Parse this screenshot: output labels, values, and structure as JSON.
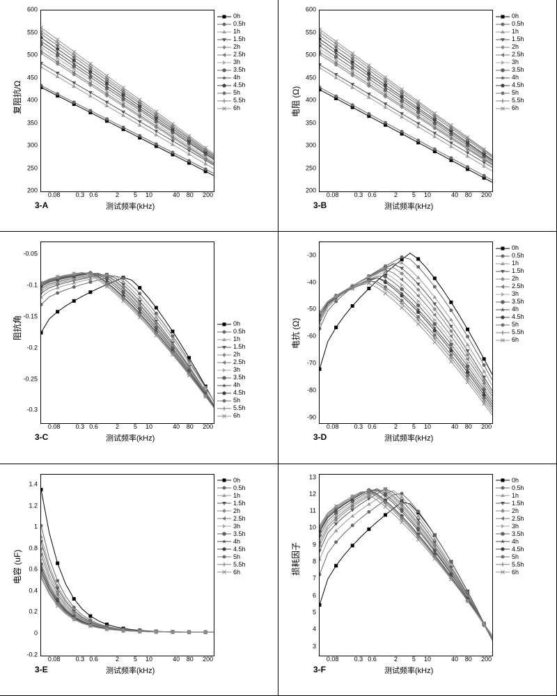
{
  "figure_size": [
    800,
    1000
  ],
  "background_color": "#ffffff",
  "tick_font_size": 9,
  "label_font_size": 12,
  "xlabel_font_size": 11,
  "x_axis_label": "测试频率(kHz)",
  "x_ticks": [
    0.08,
    0.3,
    0.6,
    2,
    5,
    10,
    40,
    80,
    200
  ],
  "x_scale": "log",
  "xlim": [
    0.04,
    260
  ],
  "legend_labels": [
    "0h",
    "0.5h",
    "1h",
    "1.5h",
    "2h",
    "2.5h",
    "3h",
    "3.5h",
    "4h",
    "4.5h",
    "5h",
    "5.5h",
    "6h"
  ],
  "legend_font_size": 9,
  "series_colors": [
    "#000000",
    "#666666",
    "#999999",
    "#555555",
    "#888888",
    "#777777",
    "#aaaaaa",
    "#606060",
    "#505050",
    "#404040",
    "#707070",
    "#808080",
    "#909090"
  ],
  "series_markers": [
    "square",
    "circle",
    "triangle-up",
    "triangle-down",
    "diamond",
    "triangle-left",
    "triangle-right",
    "hexagon",
    "star",
    "pentagon",
    "circle",
    "plus",
    "cross"
  ],
  "line_width": 1,
  "marker_size": 5,
  "panels": [
    {
      "tag": "3-A",
      "ylabel": "复阻抗/Ω",
      "ylim": [
        200,
        600
      ],
      "ytick_step": 50,
      "type": "line",
      "monotonic": "decreasing",
      "legend_pos": "upper-right",
      "series": [
        {
          "y_start": 430,
          "y_end": 235
        },
        {
          "y_start": 434,
          "y_end": 240
        },
        {
          "y_start": 475,
          "y_end": 250
        },
        {
          "y_start": 483,
          "y_end": 258
        },
        {
          "y_start": 505,
          "y_end": 260
        },
        {
          "y_start": 510,
          "y_end": 262
        },
        {
          "y_start": 518,
          "y_end": 265
        },
        {
          "y_start": 525,
          "y_end": 270
        },
        {
          "y_start": 532,
          "y_end": 272
        },
        {
          "y_start": 540,
          "y_end": 275
        },
        {
          "y_start": 548,
          "y_end": 278
        },
        {
          "y_start": 555,
          "y_end": 280
        },
        {
          "y_start": 562,
          "y_end": 283
        }
      ]
    },
    {
      "tag": "3-B",
      "ylabel": "电阻 (Ω)",
      "ylim": [
        200,
        600
      ],
      "ytick_step": 50,
      "type": "line",
      "monotonic": "decreasing",
      "legend_pos": "upper-right",
      "series": [
        {
          "y_start": 425,
          "y_end": 220
        },
        {
          "y_start": 430,
          "y_end": 225
        },
        {
          "y_start": 473,
          "y_end": 245
        },
        {
          "y_start": 480,
          "y_end": 253
        },
        {
          "y_start": 503,
          "y_end": 258
        },
        {
          "y_start": 508,
          "y_end": 260
        },
        {
          "y_start": 515,
          "y_end": 262
        },
        {
          "y_start": 522,
          "y_end": 265
        },
        {
          "y_start": 530,
          "y_end": 268
        },
        {
          "y_start": 537,
          "y_end": 270
        },
        {
          "y_start": 545,
          "y_end": 275
        },
        {
          "y_start": 552,
          "y_end": 278
        },
        {
          "y_start": 558,
          "y_end": 280
        }
      ]
    },
    {
      "tag": "3-C",
      "ylabel": "阻抗角",
      "ylim": [
        -0.32,
        -0.03
      ],
      "yticks": [
        -0.05,
        -0.1,
        -0.15,
        -0.2,
        -0.25,
        -0.3
      ],
      "type": "line",
      "shape": "peak",
      "legend_pos": "lower-right",
      "series": [
        {
          "y_low": -0.175,
          "y_peak": -0.085,
          "x_peak": 3,
          "y_end": -0.285
        },
        {
          "y_low": -0.13,
          "y_peak": -0.083,
          "x_peak": 2,
          "y_end": -0.285
        },
        {
          "y_low": -0.118,
          "y_peak": -0.082,
          "x_peak": 1.5,
          "y_end": -0.285
        },
        {
          "y_low": -0.112,
          "y_peak": -0.081,
          "x_peak": 1.2,
          "y_end": -0.29
        },
        {
          "y_low": -0.108,
          "y_peak": -0.081,
          "x_peak": 1.0,
          "y_end": -0.29
        },
        {
          "y_low": -0.105,
          "y_peak": -0.08,
          "x_peak": 0.9,
          "y_end": -0.29
        },
        {
          "y_low": -0.103,
          "y_peak": -0.08,
          "x_peak": 0.8,
          "y_end": -0.292
        },
        {
          "y_low": -0.101,
          "y_peak": -0.079,
          "x_peak": 0.7,
          "y_end": -0.292
        },
        {
          "y_low": -0.1,
          "y_peak": -0.079,
          "x_peak": 0.6,
          "y_end": -0.293
        },
        {
          "y_low": -0.098,
          "y_peak": -0.079,
          "x_peak": 0.5,
          "y_end": -0.294
        },
        {
          "y_low": -0.097,
          "y_peak": -0.078,
          "x_peak": 0.45,
          "y_end": -0.294
        },
        {
          "y_low": -0.096,
          "y_peak": -0.078,
          "x_peak": 0.4,
          "y_end": -0.295
        },
        {
          "y_low": -0.095,
          "y_peak": -0.078,
          "x_peak": 0.35,
          "y_end": -0.295
        }
      ]
    },
    {
      "tag": "3-D",
      "ylabel": "电抗 (Ω)",
      "ylim": [
        -92,
        -25
      ],
      "yticks": [
        -30,
        -40,
        -50,
        -60,
        -70,
        -80,
        -90
      ],
      "type": "line",
      "shape": "peak",
      "legend_pos": "upper-right",
      "series": [
        {
          "y_low": -72,
          "y_peak": -29,
          "x_peak": 4,
          "y_end": -74
        },
        {
          "y_low": -57,
          "y_peak": -30,
          "x_peak": 3,
          "y_end": -76
        },
        {
          "y_low": -55,
          "y_peak": -32,
          "x_peak": 2.2,
          "y_end": -78
        },
        {
          "y_low": -54,
          "y_peak": -33,
          "x_peak": 1.8,
          "y_end": -80
        },
        {
          "y_low": -53,
          "y_peak": -34,
          "x_peak": 1.5,
          "y_end": -81
        },
        {
          "y_low": -53,
          "y_peak": -35,
          "x_peak": 1.2,
          "y_end": -82
        },
        {
          "y_low": -52,
          "y_peak": -36,
          "x_peak": 1.0,
          "y_end": -83
        },
        {
          "y_low": -52,
          "y_peak": -37,
          "x_peak": 0.9,
          "y_end": -84
        },
        {
          "y_low": -52,
          "y_peak": -38,
          "x_peak": 0.8,
          "y_end": -85
        },
        {
          "y_low": -51,
          "y_peak": -38,
          "x_peak": 0.7,
          "y_end": -86
        },
        {
          "y_low": -51,
          "y_peak": -39,
          "x_peak": 0.6,
          "y_end": -87
        },
        {
          "y_low": -51,
          "y_peak": -39,
          "x_peak": 0.5,
          "y_end": -88
        },
        {
          "y_low": -51,
          "y_peak": -40,
          "x_peak": 0.45,
          "y_end": -89
        }
      ]
    },
    {
      "tag": "3-E",
      "ylabel": "电容 (uF)",
      "ylim": [
        -0.2,
        1.5
      ],
      "yticks": [
        -0.2,
        0.0,
        0.2,
        0.4,
        0.6,
        0.8,
        1.0,
        1.2,
        1.4
      ],
      "type": "line",
      "shape": "decay",
      "legend_pos": "upper-right",
      "series": [
        {
          "y_start": 1.36,
          "decay_end": 0.02
        },
        {
          "y_start": 1.02,
          "decay_end": 0.02
        },
        {
          "y_start": 0.92,
          "decay_end": 0.02
        },
        {
          "y_start": 0.87,
          "decay_end": 0.02
        },
        {
          "y_start": 0.8,
          "decay_end": 0.02
        },
        {
          "y_start": 0.75,
          "decay_end": 0.02
        },
        {
          "y_start": 0.7,
          "decay_end": 0.02
        },
        {
          "y_start": 0.66,
          "decay_end": 0.02
        },
        {
          "y_start": 0.63,
          "decay_end": 0.02
        },
        {
          "y_start": 0.6,
          "decay_end": 0.02
        },
        {
          "y_start": 0.58,
          "decay_end": 0.02
        },
        {
          "y_start": 0.55,
          "decay_end": 0.02
        },
        {
          "y_start": 0.53,
          "decay_end": 0.02
        }
      ]
    },
    {
      "tag": "3-F",
      "ylabel": "损耗因子",
      "ylim": [
        2.5,
        13.2
      ],
      "yticks": [
        3,
        4,
        5,
        6,
        7,
        8,
        9,
        10,
        11,
        12,
        13
      ],
      "type": "line",
      "shape": "peak",
      "legend_pos": "upper-right",
      "series": [
        {
          "y_low": 5.5,
          "y_peak": 11.7,
          "x_peak": 3,
          "y_end": 3.4
        },
        {
          "y_low": 7.3,
          "y_peak": 12.2,
          "x_peak": 2.2,
          "y_end": 3.4
        },
        {
          "y_low": 8.2,
          "y_peak": 12.3,
          "x_peak": 1.6,
          "y_end": 3.4
        },
        {
          "y_low": 8.7,
          "y_peak": 12.4,
          "x_peak": 1.2,
          "y_end": 3.5
        },
        {
          "y_low": 9.0,
          "y_peak": 12.4,
          "x_peak": 1.0,
          "y_end": 3.5
        },
        {
          "y_low": 9.2,
          "y_peak": 12.4,
          "x_peak": 0.9,
          "y_end": 3.5
        },
        {
          "y_low": 9.4,
          "y_peak": 12.4,
          "x_peak": 0.8,
          "y_end": 3.5
        },
        {
          "y_low": 9.6,
          "y_peak": 12.4,
          "x_peak": 0.7,
          "y_end": 3.5
        },
        {
          "y_low": 9.8,
          "y_peak": 12.4,
          "x_peak": 0.6,
          "y_end": 3.6
        },
        {
          "y_low": 9.9,
          "y_peak": 12.3,
          "x_peak": 0.5,
          "y_end": 3.6
        },
        {
          "y_low": 10.0,
          "y_peak": 12.3,
          "x_peak": 0.45,
          "y_end": 3.6
        },
        {
          "y_low": 10.1,
          "y_peak": 12.3,
          "x_peak": 0.4,
          "y_end": 3.6
        },
        {
          "y_low": 10.2,
          "y_peak": 12.2,
          "x_peak": 0.35,
          "y_end": 3.7
        }
      ]
    }
  ]
}
